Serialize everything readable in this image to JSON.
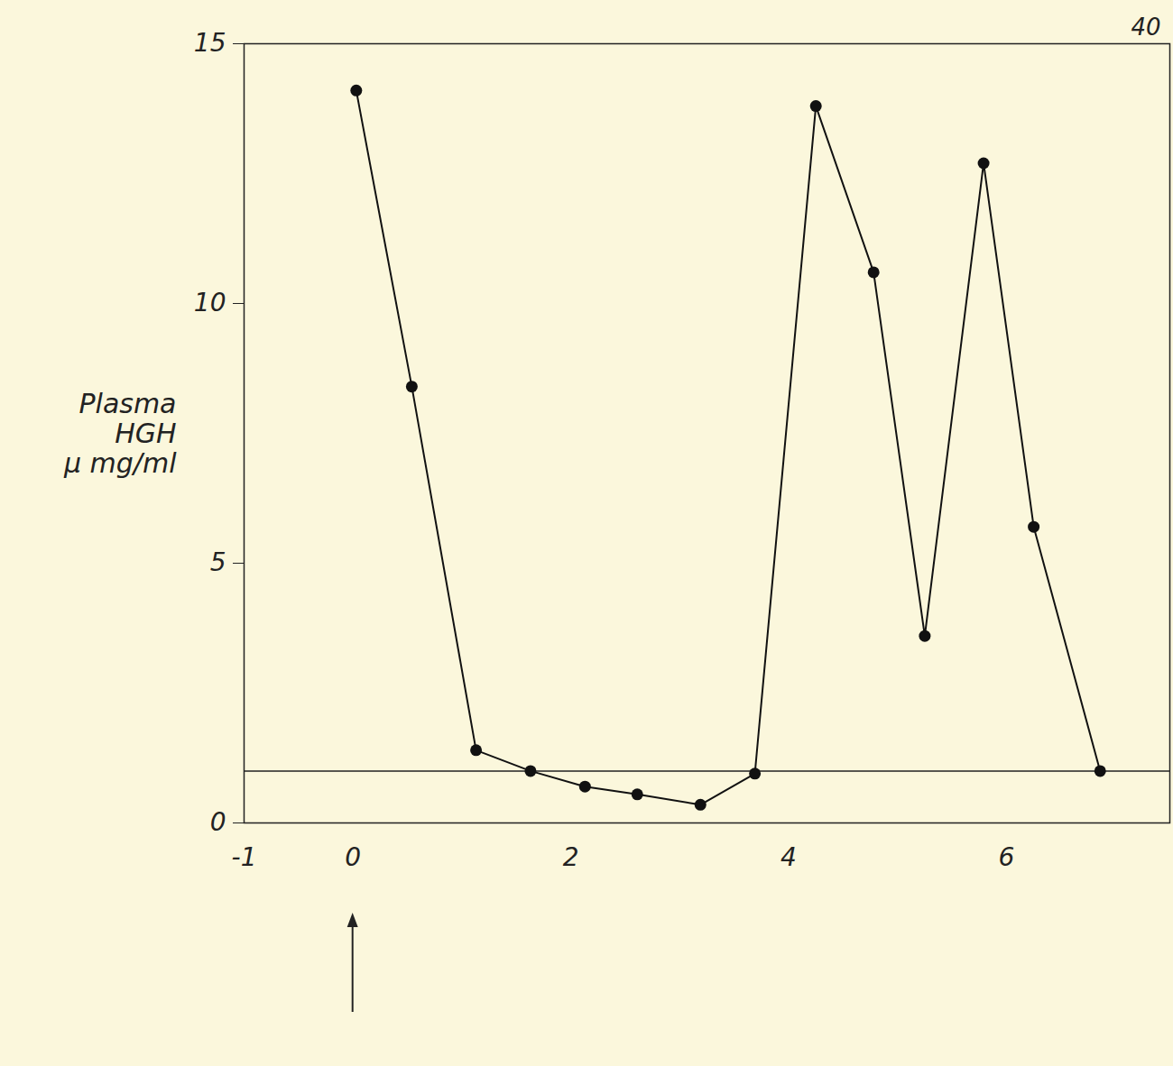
{
  "chart_data": {
    "type": "line",
    "ylabel": "Plasma\nHGH\nμ mg/ml",
    "x": [
      0.03,
      0.54,
      1.13,
      1.63,
      2.13,
      2.61,
      3.19,
      3.69,
      4.25,
      4.78,
      5.25,
      5.79,
      6.25,
      6.86
    ],
    "values": [
      14.1,
      8.4,
      1.4,
      1.0,
      0.7,
      0.55,
      0.35,
      0.95,
      13.8,
      10.6,
      3.6,
      12.7,
      5.7,
      1.0
    ],
    "color": "#111111",
    "marker": "circle",
    "xlim": [
      -1,
      7.5
    ],
    "xticks": [
      -1,
      0,
      2,
      4,
      6
    ],
    "ylim": [
      0,
      15
    ],
    "yticks": [
      0,
      5,
      10,
      15
    ],
    "baseline": 1.0,
    "arrow_at": 0,
    "corner_text": "40",
    "grid": false
  }
}
